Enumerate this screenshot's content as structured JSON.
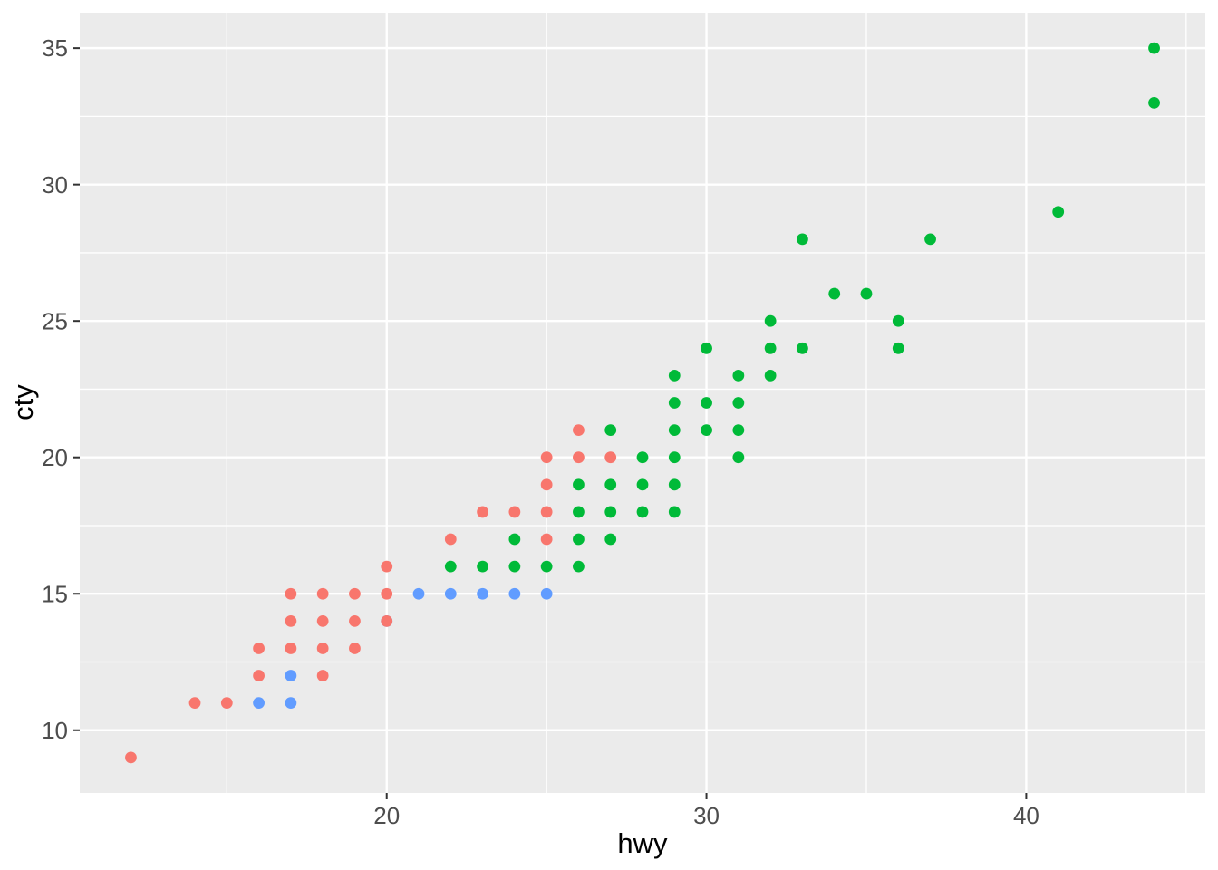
{
  "chart_data": {
    "type": "scatter",
    "title": "",
    "xlabel": "hwy",
    "ylabel": "cty",
    "xlim": [
      10.4,
      45.6
    ],
    "ylim": [
      7.7,
      36.3
    ],
    "x_ticks": [
      20,
      30,
      40
    ],
    "y_ticks": [
      10,
      15,
      20,
      25,
      30,
      35
    ],
    "x_minor_gridlines": [
      15,
      25,
      35,
      45
    ],
    "y_minor_gridlines": [
      12.5,
      17.5,
      22.5,
      27.5,
      32.5
    ],
    "grid": "white major and minor gridlines on gray panel",
    "legend_position": "none",
    "point_radius": 6.4,
    "colors": {
      "panel_background": "#EBEBEB",
      "gridline": "#FFFFFF",
      "tick_mark": "#333333",
      "tick_label": "#4D4D4D",
      "axis_title": "#000000",
      "red": "#F8766D",
      "green": "#00BA38",
      "blue": "#619CFF"
    },
    "series": [
      {
        "name": "blue",
        "color": "#619CFF",
        "points": [
          [
            16,
            11
          ],
          [
            17,
            11
          ],
          [
            17,
            12
          ],
          [
            20,
            14
          ],
          [
            21,
            15
          ],
          [
            22,
            15
          ],
          [
            23,
            15
          ],
          [
            24,
            15
          ],
          [
            25,
            15
          ]
        ]
      },
      {
        "name": "green",
        "color": "#00BA38",
        "points": [
          [
            22,
            16
          ],
          [
            23,
            16
          ],
          [
            24,
            16
          ],
          [
            25,
            16
          ],
          [
            26,
            16
          ],
          [
            24,
            17
          ],
          [
            26,
            17
          ],
          [
            27,
            17
          ],
          [
            26,
            18
          ],
          [
            27,
            18
          ],
          [
            28,
            18
          ],
          [
            29,
            18
          ],
          [
            26,
            19
          ],
          [
            27,
            19
          ],
          [
            28,
            19
          ],
          [
            29,
            19
          ],
          [
            28,
            20
          ],
          [
            29,
            20
          ],
          [
            31,
            20
          ],
          [
            27,
            21
          ],
          [
            29,
            21
          ],
          [
            30,
            21
          ],
          [
            31,
            21
          ],
          [
            29,
            22
          ],
          [
            30,
            22
          ],
          [
            31,
            22
          ],
          [
            29,
            23
          ],
          [
            31,
            23
          ],
          [
            32,
            23
          ],
          [
            30,
            24
          ],
          [
            32,
            24
          ],
          [
            33,
            24
          ],
          [
            36,
            24
          ],
          [
            32,
            25
          ],
          [
            36,
            25
          ],
          [
            34,
            26
          ],
          [
            35,
            26
          ],
          [
            33,
            28
          ],
          [
            37,
            28
          ],
          [
            41,
            29
          ],
          [
            44,
            33
          ],
          [
            44,
            35
          ]
        ]
      },
      {
        "name": "red",
        "color": "#F8766D",
        "points": [
          [
            12,
            9
          ],
          [
            14,
            11
          ],
          [
            15,
            11
          ],
          [
            16,
            12
          ],
          [
            18,
            12
          ],
          [
            16,
            13
          ],
          [
            17,
            13
          ],
          [
            18,
            13
          ],
          [
            19,
            13
          ],
          [
            17,
            14
          ],
          [
            18,
            14
          ],
          [
            19,
            14
          ],
          [
            20,
            14
          ],
          [
            17,
            15
          ],
          [
            18,
            15
          ],
          [
            19,
            15
          ],
          [
            20,
            15
          ],
          [
            20,
            16
          ],
          [
            22,
            17
          ],
          [
            25,
            17
          ],
          [
            23,
            18
          ],
          [
            24,
            18
          ],
          [
            25,
            18
          ],
          [
            25,
            19
          ],
          [
            25,
            20
          ],
          [
            26,
            20
          ],
          [
            27,
            20
          ],
          [
            26,
            21
          ]
        ]
      }
    ]
  }
}
